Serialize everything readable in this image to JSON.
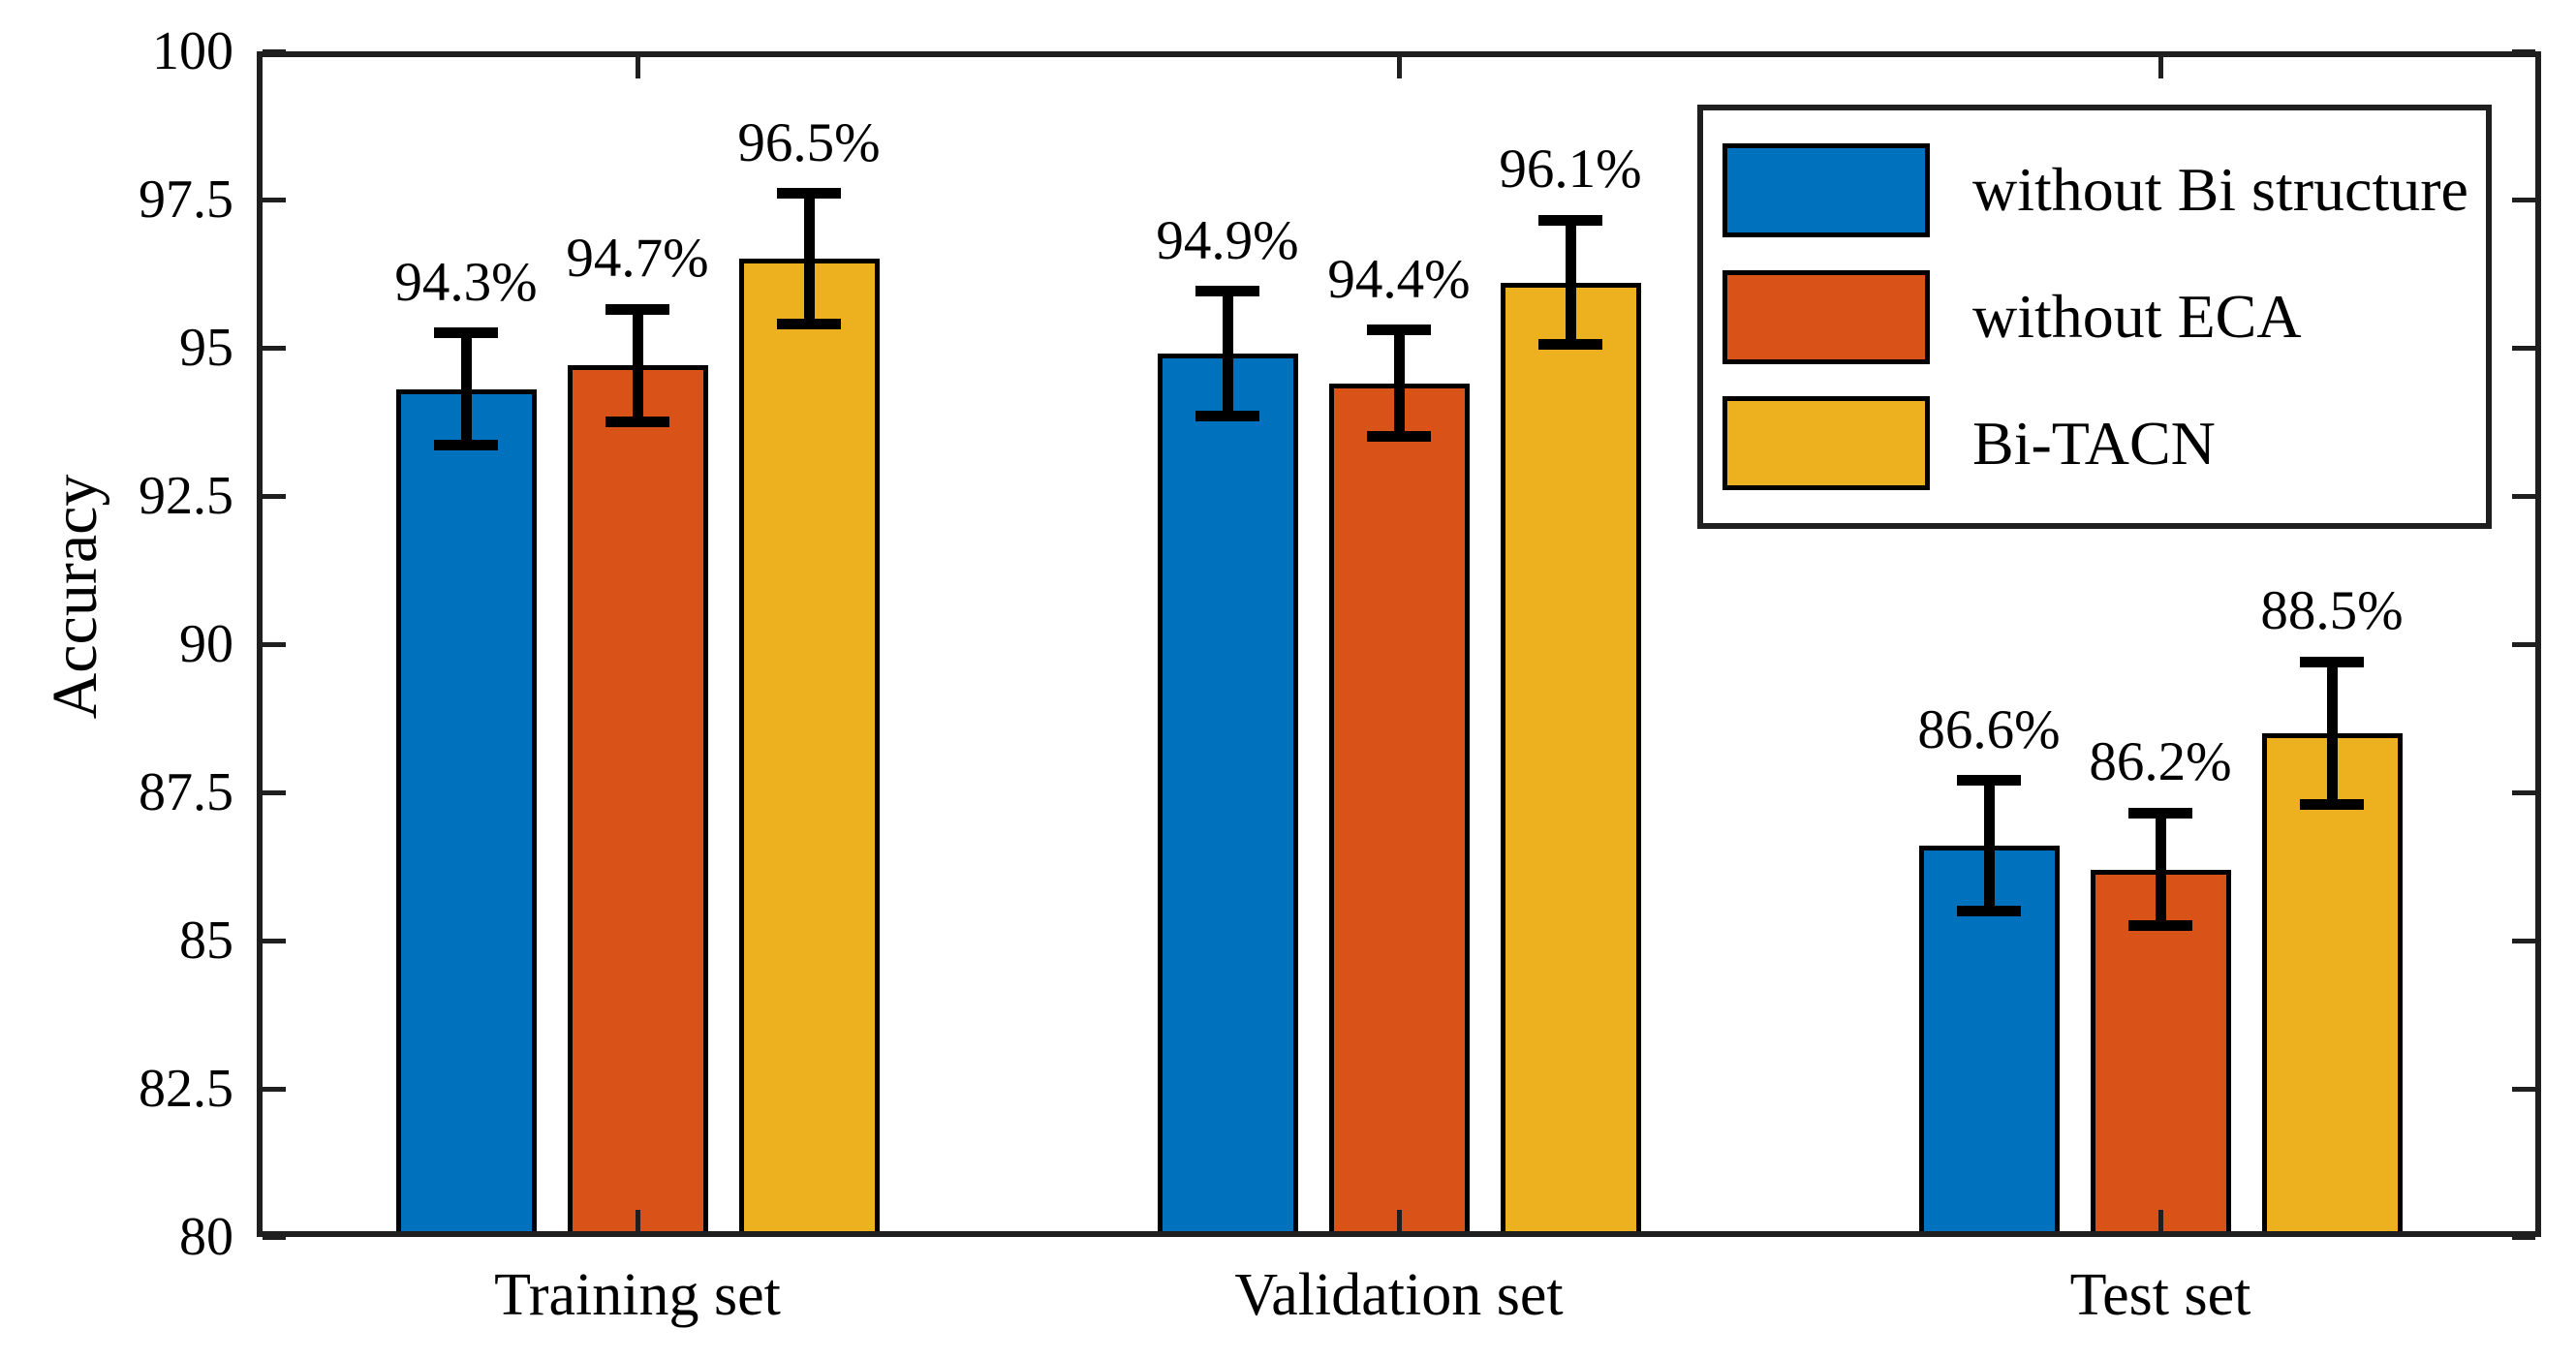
{
  "chart_data": {
    "type": "bar",
    "title": "",
    "xlabel": "",
    "ylabel": "Accuracy",
    "ylim": [
      80,
      100
    ],
    "yticks": [
      "80",
      "82.5",
      "85",
      "87.5",
      "90",
      "92.5",
      "95",
      "97.5",
      "100"
    ],
    "ytick_values": [
      80,
      82.5,
      85,
      87.5,
      90,
      92.5,
      95,
      97.5,
      100
    ],
    "categories": [
      "Training set",
      "Validation set",
      "Test set"
    ],
    "series": [
      {
        "name": "without Bi structure",
        "color": "#0072BD",
        "values": [
          94.3,
          94.9,
          86.6
        ],
        "errors": [
          0.95,
          1.05,
          1.1
        ],
        "labels": [
          "94.3%",
          "94.9%",
          "86.6%"
        ]
      },
      {
        "name": "without ECA",
        "color": "#D95319",
        "values": [
          94.7,
          94.4,
          86.2
        ],
        "errors": [
          0.95,
          0.9,
          0.95
        ],
        "labels": [
          "94.7%",
          "94.4%",
          "86.2%"
        ]
      },
      {
        "name": "Bi-TACN",
        "color": "#EDB120",
        "values": [
          96.5,
          96.1,
          88.5
        ],
        "errors": [
          1.1,
          1.05,
          1.2
        ],
        "labels": [
          "96.5%",
          "96.1%",
          "88.5%"
        ]
      }
    ],
    "error_bars": true,
    "grid": false,
    "legend_position": "top-right",
    "axis_color": "#1f1f1f",
    "error_bar_color": "#000000"
  }
}
